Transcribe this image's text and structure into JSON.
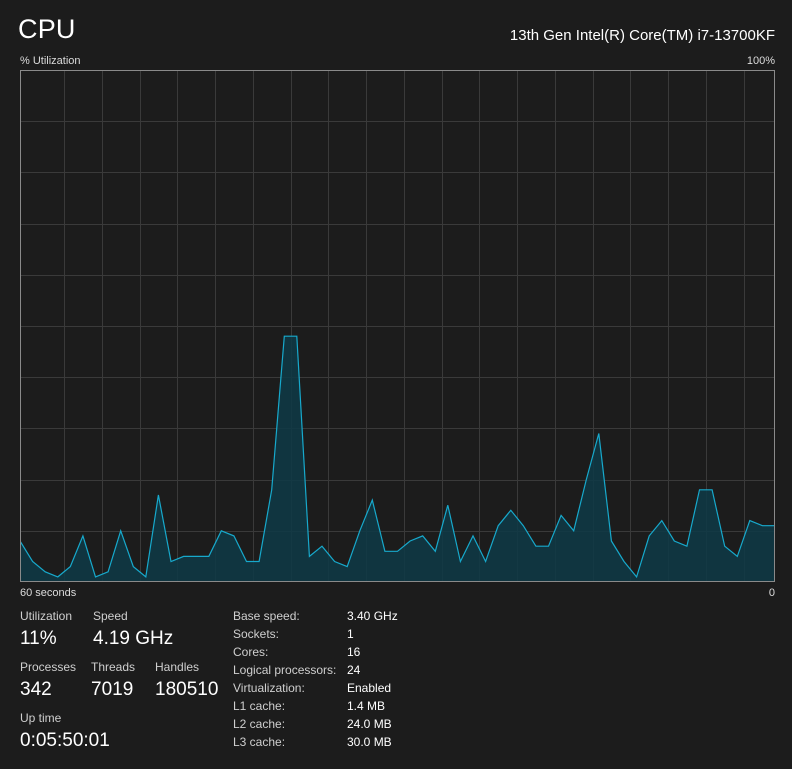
{
  "header": {
    "title": "CPU",
    "model": "13th Gen Intel(R) Core(TM) i7-13700KF"
  },
  "graph": {
    "y_label": "% Utilization",
    "y_max_label": "100%",
    "x_left_label": "60 seconds",
    "x_right_label": "0"
  },
  "chart_data": {
    "type": "area",
    "ylim": [
      0,
      100
    ],
    "xlim": [
      60,
      0
    ],
    "x": [
      60,
      59,
      58,
      57,
      56,
      55,
      54,
      53,
      52,
      51,
      50,
      49,
      48,
      47,
      46,
      45,
      44,
      43,
      42,
      41,
      40,
      39,
      38,
      37,
      36,
      35,
      34,
      33,
      32,
      31,
      30,
      29,
      28,
      27,
      26,
      25,
      24,
      23,
      22,
      21,
      20,
      19,
      18,
      17,
      16,
      15,
      14,
      13,
      12,
      11,
      10,
      9,
      8,
      7,
      6,
      5,
      4,
      3,
      2,
      1,
      0
    ],
    "values": [
      8,
      4,
      2,
      1,
      3,
      9,
      1,
      2,
      10,
      3,
      1,
      17,
      4,
      5,
      5,
      5,
      10,
      9,
      4,
      4,
      18,
      48,
      48,
      5,
      7,
      4,
      3,
      10,
      16,
      6,
      6,
      8,
      9,
      6,
      15,
      4,
      9,
      4,
      11,
      14,
      11,
      7,
      7,
      13,
      10,
      20,
      29,
      8,
      4,
      1,
      9,
      12,
      8,
      7,
      18,
      18,
      7,
      5,
      12,
      11,
      11
    ],
    "color": "#17a9cc",
    "fill": "#0e3a47",
    "grid": true,
    "grid_color": "#3a3a3a"
  },
  "stats": {
    "utilization_label": "Utilization",
    "utilization_value": "11%",
    "speed_label": "Speed",
    "speed_value": "4.19 GHz",
    "processes_label": "Processes",
    "processes_value": "342",
    "threads_label": "Threads",
    "threads_value": "7019",
    "handles_label": "Handles",
    "handles_value": "180510",
    "uptime_label": "Up time",
    "uptime_value": "0:05:50:01"
  },
  "specs": [
    {
      "key": "Base speed:",
      "value": "3.40 GHz"
    },
    {
      "key": "Sockets:",
      "value": "1"
    },
    {
      "key": "Cores:",
      "value": "16"
    },
    {
      "key": "Logical processors:",
      "value": "24"
    },
    {
      "key": "Virtualization:",
      "value": "Enabled"
    },
    {
      "key": "L1 cache:",
      "value": "1.4 MB"
    },
    {
      "key": "L2 cache:",
      "value": "24.0 MB"
    },
    {
      "key": "L3 cache:",
      "value": "30.0 MB"
    }
  ]
}
